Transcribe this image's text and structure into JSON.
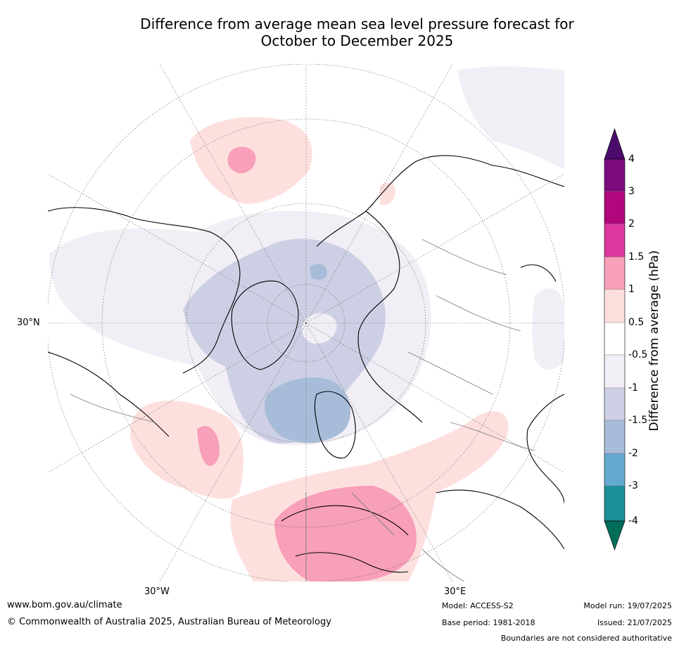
{
  "title": {
    "line1": "Difference from average mean sea level pressure forecast for",
    "line2": "October to December 2025"
  },
  "colorbar": {
    "label": "Difference from average (hPa)",
    "ticks": [
      "4",
      "3",
      "2",
      "1.5",
      "1",
      "0.5",
      "-0.5",
      "-1",
      "-1.5",
      "-2",
      "-3",
      "-4"
    ],
    "colors": [
      "#4b0c6b",
      "#7c0b7e",
      "#b0077d",
      "#dd389e",
      "#f89fb9",
      "#fde0de",
      "#ffffff",
      "#f2eef5",
      "#cdd0e4",
      "#a7bcd8",
      "#64a9cf",
      "#1c9099",
      "#016c59"
    ]
  },
  "map": {
    "lat_label": "30°N",
    "lon_labels": [
      "30°W",
      "30°E"
    ],
    "colors": {
      "land_outline": "#000000",
      "border": "#808080",
      "grid": "#555555"
    }
  },
  "footer": {
    "website": "www.bom.gov.au/climate",
    "copyright": "© Commonwealth of Australia 2025, Australian Bureau of Meteorology",
    "model": "Model: ACCESS-S2",
    "base_period": "Base period: 1981-2018",
    "model_run": "Model run: 19/07/2025",
    "issued": "Issued: 21/07/2025",
    "boundaries": "Boundaries are not considered authoritative"
  }
}
